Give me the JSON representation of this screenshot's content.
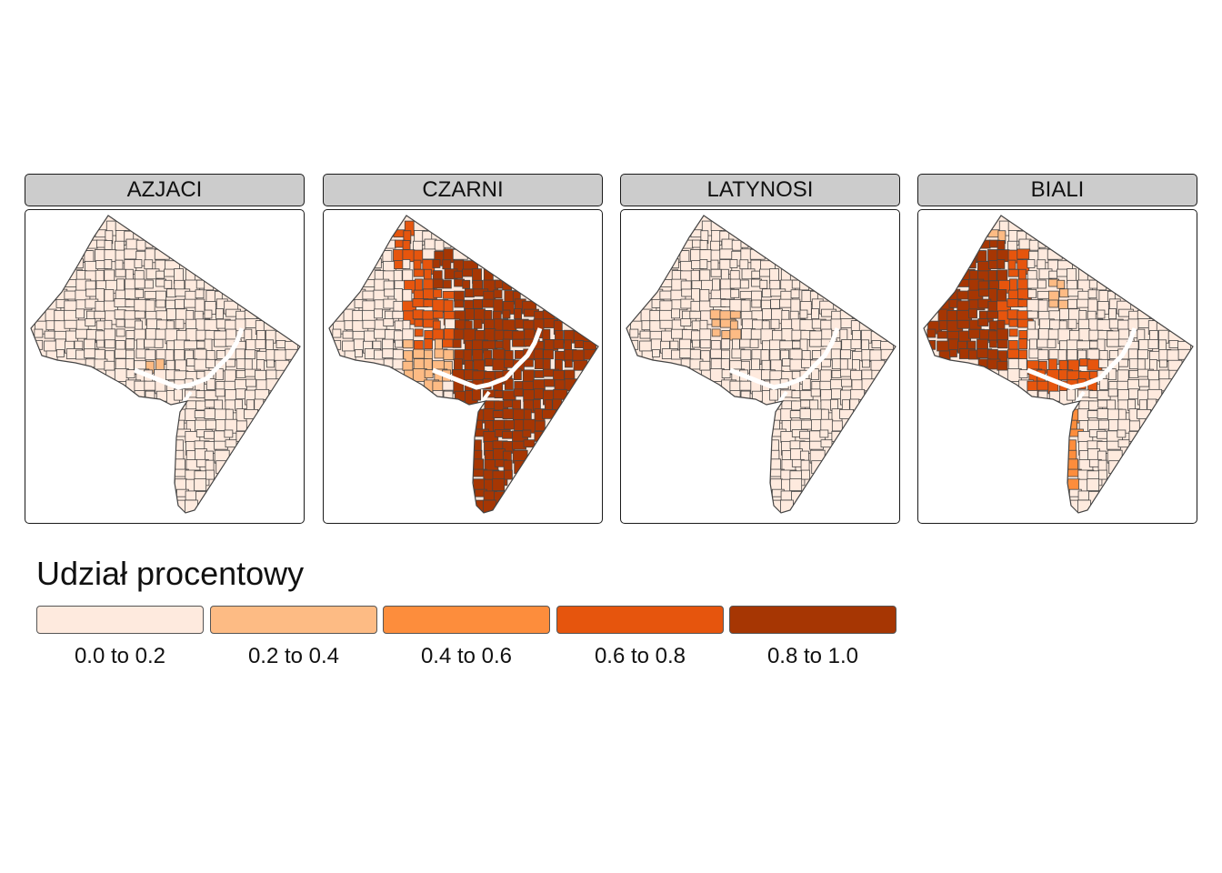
{
  "panels": [
    {
      "title": "AZJACI",
      "scheme": "azjaci"
    },
    {
      "title": "CZARNI",
      "scheme": "czarni"
    },
    {
      "title": "LATYNOSI",
      "scheme": "latynosi"
    },
    {
      "title": "BIALI",
      "scheme": "biali"
    }
  ],
  "legend": {
    "title": "Udział procentowy",
    "items": [
      {
        "label": "0.0 to 0.2",
        "color": "#feeade"
      },
      {
        "label": "0.2 to 0.4",
        "color": "#fdbb84"
      },
      {
        "label": "0.4 to 0.6",
        "color": "#fd8d3c"
      },
      {
        "label": "0.6 to 0.8",
        "color": "#e6550d"
      },
      {
        "label": "0.8 to 1.0",
        "color": "#a63603"
      }
    ]
  },
  "colors": {
    "strip_bg": "#cccccc",
    "border": "#1a1a1a",
    "tract_line": "#444444"
  }
}
